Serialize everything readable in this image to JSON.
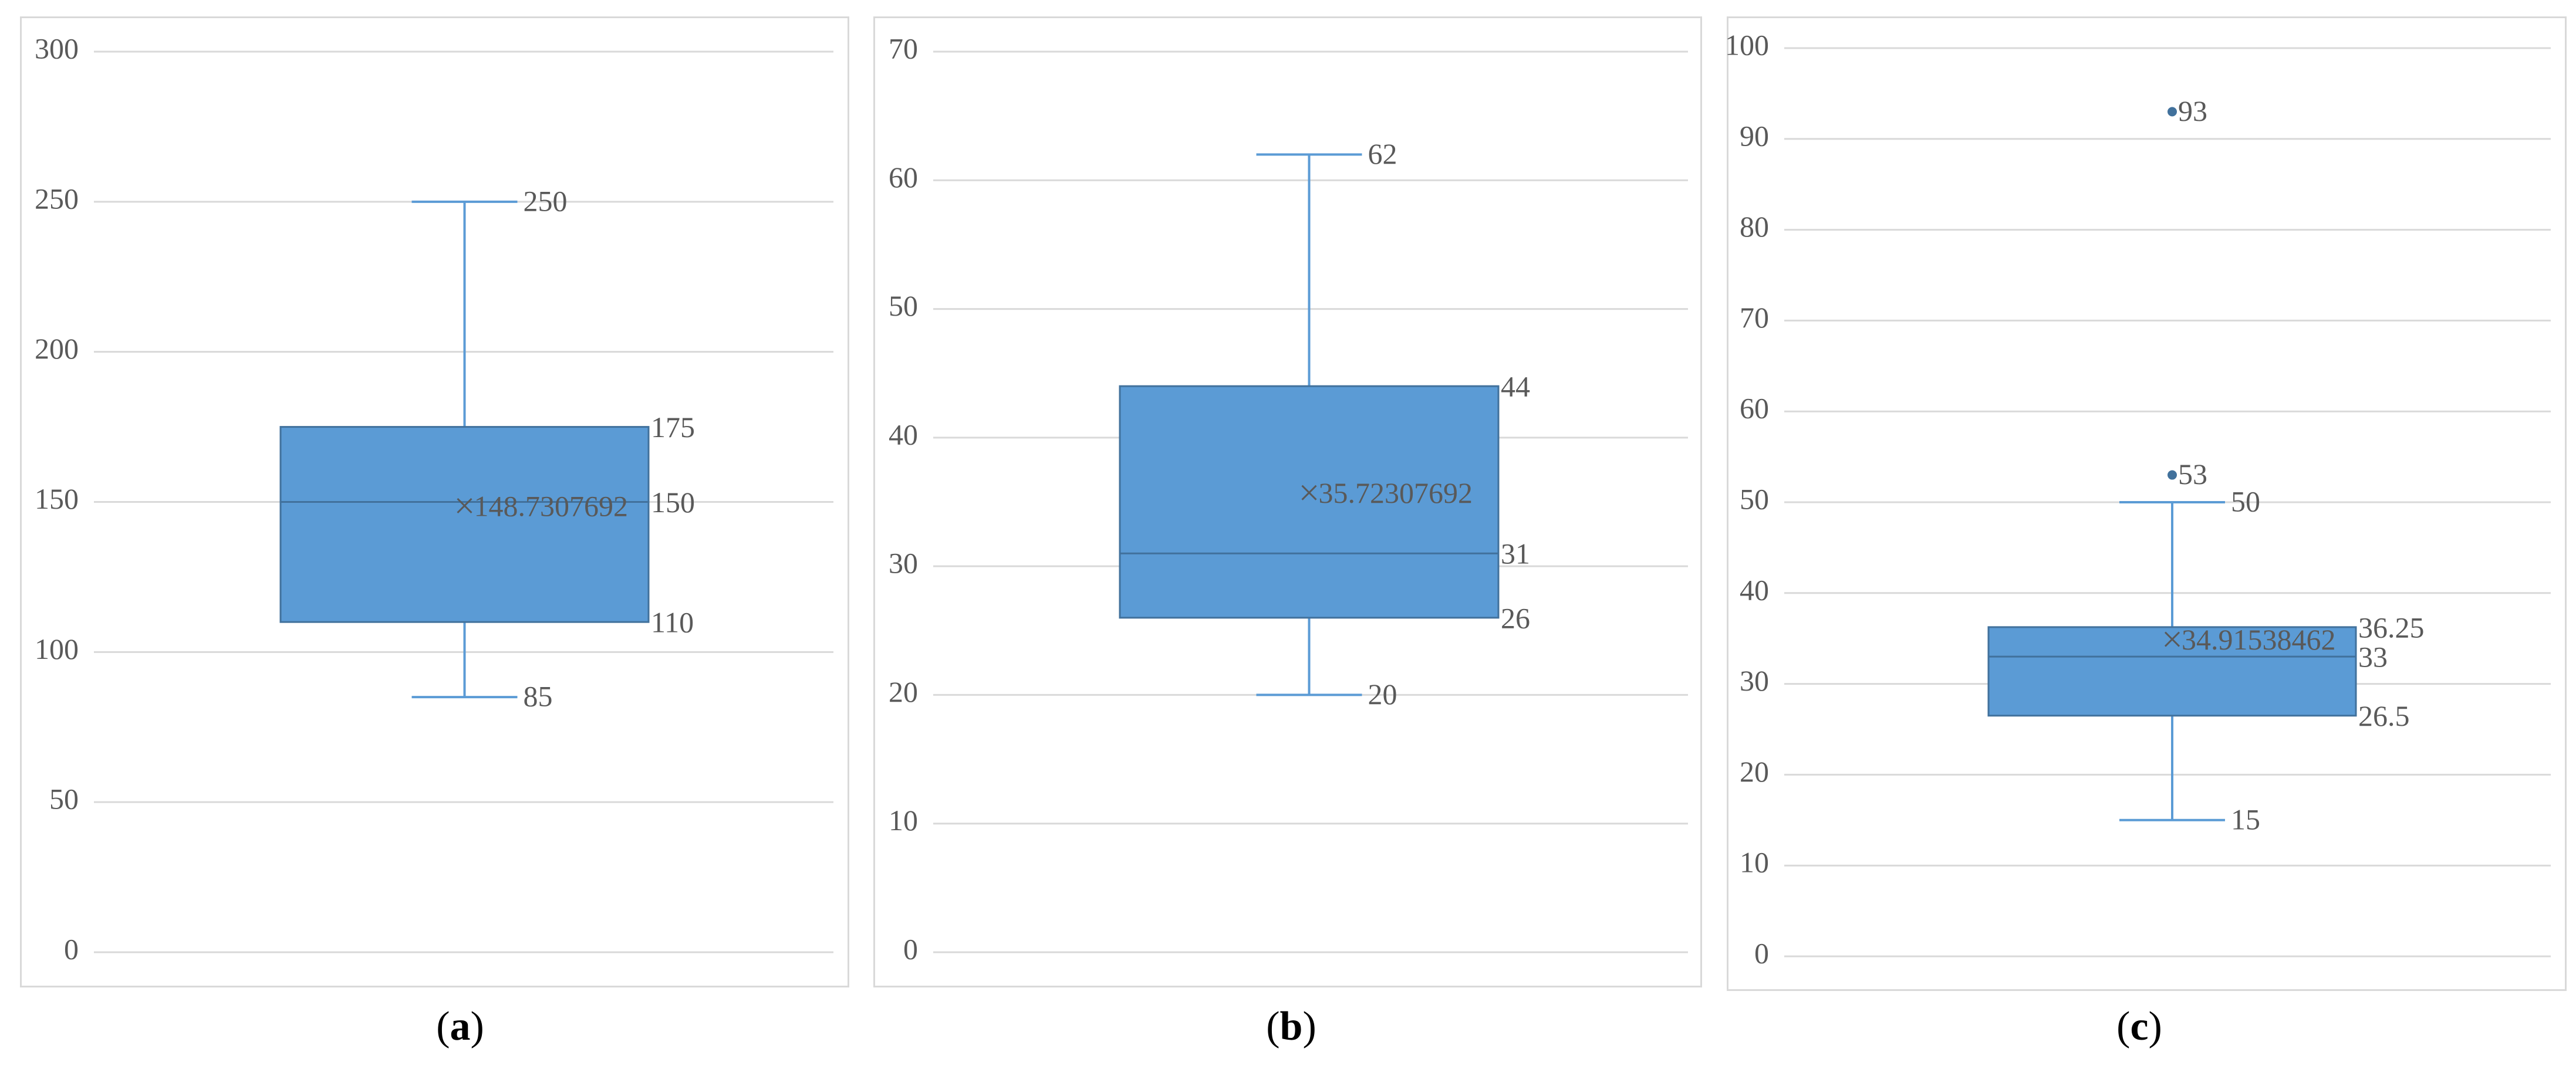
{
  "colors": {
    "box": "#5b9bd5",
    "box_edge": "#41719c",
    "grid": "#d9d9d9",
    "text": "#595959",
    "whisker": "#5b9bd5"
  },
  "chart_data": [
    {
      "type": "box",
      "panel": "a",
      "caption": "a",
      "ylim": [
        0,
        300
      ],
      "yticks": [
        0,
        50,
        100,
        150,
        200,
        250,
        300
      ],
      "grid": true,
      "min": 85,
      "q1": 110,
      "median": 150,
      "q3": 175,
      "max": 250,
      "mean": 148.7307692,
      "outliers": [],
      "labels": {
        "min": "85",
        "q1": "110",
        "median": "150",
        "q3": "175",
        "max": "250",
        "mean": "148.7307692"
      }
    },
    {
      "type": "box",
      "panel": "b",
      "caption": "b",
      "ylim": [
        0,
        70
      ],
      "yticks": [
        0,
        10,
        20,
        30,
        40,
        50,
        60,
        70
      ],
      "grid": true,
      "min": 20,
      "q1": 26,
      "median": 31,
      "q3": 44,
      "max": 62,
      "mean": 35.72307692,
      "outliers": [],
      "labels": {
        "min": "20",
        "q1": "26",
        "median": "31",
        "q3": "44",
        "max": "62",
        "mean": "35.72307692"
      }
    },
    {
      "type": "box",
      "panel": "c",
      "caption": "c",
      "ylim": [
        0,
        100
      ],
      "yticks": [
        0,
        10,
        20,
        30,
        40,
        50,
        60,
        70,
        80,
        90,
        100
      ],
      "grid": true,
      "min": 15,
      "q1": 26.5,
      "median": 33,
      "q3": 36.25,
      "max": 50,
      "mean": 34.91538462,
      "outliers": [
        53,
        93
      ],
      "labels": {
        "min": "15",
        "q1": "26.5",
        "median": "33",
        "q3": "36.25",
        "max": "50",
        "mean": "34.91538462",
        "outliers": [
          "53",
          "93"
        ]
      }
    }
  ]
}
